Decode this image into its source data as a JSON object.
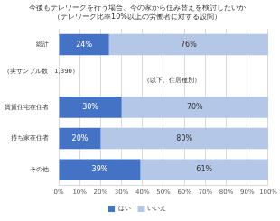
{
  "chart_data": {
    "type": "bar",
    "orientation": "horizontal",
    "stacked": true,
    "title": "今後もテレワークを行う場合、今の家から住み替えを検討したいか",
    "subtitle": "（テレワーク比率10%以上の労働者に対する設問）",
    "categories": [
      "総計",
      null,
      "賃貸住宅在住者",
      "持ち家在住者",
      "その他"
    ],
    "series": [
      {
        "name": "はい",
        "color": "#4472c4",
        "values": [
          24,
          null,
          30,
          20,
          39
        ],
        "value_labels": [
          "24%",
          null,
          "30%",
          "20%",
          "39%"
        ]
      },
      {
        "name": "いいえ",
        "color": "#b4c7e7",
        "values": [
          76,
          null,
          70,
          80,
          61
        ],
        "value_labels": [
          "76%",
          null,
          "70%",
          "80%",
          "61%"
        ]
      }
    ],
    "annotations": [
      "（実サンプル数：1,390）",
      "（以下、住居種別）"
    ],
    "xlim": [
      0,
      100
    ],
    "xticks": [
      {
        "value": 0,
        "label": "0%"
      },
      {
        "value": 10,
        "label": "10%"
      },
      {
        "value": 20,
        "label": "20%"
      },
      {
        "value": 30,
        "label": "30%"
      },
      {
        "value": 40,
        "label": "40%"
      },
      {
        "value": 50,
        "label": "50%"
      },
      {
        "value": 60,
        "label": "60%"
      },
      {
        "value": 70,
        "label": "70%"
      },
      {
        "value": 80,
        "label": "80%"
      },
      {
        "value": 90,
        "label": "90%"
      },
      {
        "value": 100,
        "label": "100%"
      }
    ],
    "grid": true,
    "data_labels": true,
    "legend": "bottom"
  }
}
